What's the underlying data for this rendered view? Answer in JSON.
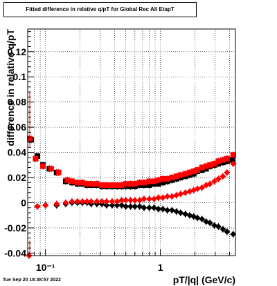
{
  "title": "Fitted difference in relative q/pT for Global Rec All EtapT",
  "timestamp": "Tue Sep 20 18:38:57 2022",
  "chart_data": {
    "type": "scatter",
    "xlabel": "pT/|q| (GeV/c)",
    "ylabel": "difference in relative q/pT",
    "x_scale": "log",
    "xlim": [
      0.07,
      4.5
    ],
    "ylim": [
      -0.042,
      0.138
    ],
    "grid": true,
    "x_ticks": [
      {
        "value": 0.1,
        "label": "10⁻¹"
      },
      {
        "value": 1,
        "label": "1"
      }
    ],
    "y_ticks": [
      {
        "value": -0.04,
        "label": "-0.04"
      },
      {
        "value": -0.02,
        "label": "-0.02"
      },
      {
        "value": 0,
        "label": "0"
      },
      {
        "value": 0.02,
        "label": "0.02"
      },
      {
        "value": 0.04,
        "label": "0.04"
      },
      {
        "value": 0.06,
        "label": "0.06"
      },
      {
        "value": 0.08,
        "label": "0.08"
      },
      {
        "value": 0.1,
        "label": "0.1"
      },
      {
        "value": 0.12,
        "label": "0.12"
      }
    ],
    "series": [
      {
        "marker": "square",
        "color": "#000000",
        "points": [
          [
            0.075,
            0.05
          ],
          [
            0.085,
            0.037
          ],
          [
            0.095,
            0.03
          ],
          [
            0.108,
            0.027
          ],
          [
            0.125,
            0.024
          ],
          [
            0.15,
            0.017
          ],
          [
            0.17,
            0.016
          ],
          [
            0.19,
            0.015
          ],
          [
            0.21,
            0.015
          ],
          [
            0.23,
            0.014
          ],
          [
            0.25,
            0.014
          ],
          [
            0.28,
            0.014
          ],
          [
            0.31,
            0.013
          ],
          [
            0.34,
            0.013
          ],
          [
            0.38,
            0.013
          ],
          [
            0.42,
            0.013
          ],
          [
            0.46,
            0.013
          ],
          [
            0.5,
            0.013
          ],
          [
            0.55,
            0.013
          ],
          [
            0.6,
            0.013
          ],
          [
            0.66,
            0.014
          ],
          [
            0.72,
            0.014
          ],
          [
            0.8,
            0.014
          ],
          [
            0.88,
            0.015
          ],
          [
            0.96,
            0.015
          ],
          [
            1.05,
            0.016
          ],
          [
            1.15,
            0.017
          ],
          [
            1.26,
            0.018
          ],
          [
            1.38,
            0.019
          ],
          [
            1.5,
            0.02
          ],
          [
            1.65,
            0.021
          ],
          [
            1.8,
            0.022
          ],
          [
            1.95,
            0.023
          ],
          [
            2.1,
            0.025
          ],
          [
            2.3,
            0.026
          ],
          [
            2.5,
            0.027
          ],
          [
            2.7,
            0.029
          ],
          [
            2.95,
            0.03
          ],
          [
            3.2,
            0.031
          ],
          [
            3.5,
            0.032
          ],
          [
            3.8,
            0.033
          ],
          [
            4.2,
            0.034
          ]
        ]
      },
      {
        "marker": "square",
        "color": "#ff0000",
        "points": [
          [
            0.073,
            0.051
          ],
          [
            0.082,
            0.035
          ],
          [
            0.095,
            0.029
          ],
          [
            0.112,
            0.027
          ],
          [
            0.13,
            0.024
          ],
          [
            0.155,
            0.018
          ],
          [
            0.17,
            0.017
          ],
          [
            0.19,
            0.016
          ],
          [
            0.21,
            0.016
          ],
          [
            0.23,
            0.015
          ],
          [
            0.25,
            0.015
          ],
          [
            0.28,
            0.015
          ],
          [
            0.31,
            0.014
          ],
          [
            0.34,
            0.014
          ],
          [
            0.38,
            0.014
          ],
          [
            0.42,
            0.014
          ],
          [
            0.46,
            0.014
          ],
          [
            0.5,
            0.015
          ],
          [
            0.55,
            0.015
          ],
          [
            0.6,
            0.015
          ],
          [
            0.66,
            0.016
          ],
          [
            0.72,
            0.016
          ],
          [
            0.8,
            0.017
          ],
          [
            0.88,
            0.017
          ],
          [
            0.96,
            0.018
          ],
          [
            1.05,
            0.019
          ],
          [
            1.15,
            0.019
          ],
          [
            1.26,
            0.02
          ],
          [
            1.38,
            0.021
          ],
          [
            1.5,
            0.022
          ],
          [
            1.65,
            0.023
          ],
          [
            1.8,
            0.024
          ],
          [
            1.95,
            0.025
          ],
          [
            2.1,
            0.026
          ],
          [
            2.3,
            0.028
          ],
          [
            2.5,
            0.029
          ],
          [
            2.7,
            0.03
          ],
          [
            2.95,
            0.031
          ],
          [
            3.2,
            0.033
          ],
          [
            3.5,
            0.034
          ],
          [
            3.8,
            0.035
          ],
          [
            4.3,
            0.038
          ]
        ]
      },
      {
        "marker": "diamond",
        "color": "#000000",
        "points": [
          [
            0.085,
            -0.003
          ],
          [
            0.1,
            -0.002
          ],
          [
            0.125,
            -0.002
          ],
          [
            0.15,
            -0.001
          ],
          [
            0.17,
            0.0
          ],
          [
            0.19,
            0.0
          ],
          [
            0.21,
            0.0
          ],
          [
            0.23,
            0.0
          ],
          [
            0.25,
            -0.001
          ],
          [
            0.28,
            -0.001
          ],
          [
            0.31,
            -0.001
          ],
          [
            0.34,
            -0.002
          ],
          [
            0.38,
            -0.002
          ],
          [
            0.42,
            -0.002
          ],
          [
            0.46,
            -0.002
          ],
          [
            0.5,
            -0.003
          ],
          [
            0.55,
            -0.003
          ],
          [
            0.6,
            -0.003
          ],
          [
            0.66,
            -0.003
          ],
          [
            0.72,
            -0.004
          ],
          [
            0.8,
            -0.004
          ],
          [
            0.88,
            -0.004
          ],
          [
            0.96,
            -0.005
          ],
          [
            1.05,
            -0.005
          ],
          [
            1.15,
            -0.006
          ],
          [
            1.26,
            -0.006
          ],
          [
            1.38,
            -0.007
          ],
          [
            1.5,
            -0.008
          ],
          [
            1.65,
            -0.009
          ],
          [
            1.8,
            -0.01
          ],
          [
            1.95,
            -0.011
          ],
          [
            2.1,
            -0.012
          ],
          [
            2.3,
            -0.013
          ],
          [
            2.5,
            -0.015
          ],
          [
            2.7,
            -0.016
          ],
          [
            2.95,
            -0.018
          ],
          [
            3.2,
            -0.019
          ],
          [
            3.5,
            -0.021
          ],
          [
            3.8,
            -0.023
          ],
          [
            4.3,
            -0.025
          ]
        ]
      },
      {
        "marker": "diamond",
        "color": "#ff0000",
        "points": [
          [
            0.072,
            -0.042
          ],
          [
            0.085,
            -0.003
          ],
          [
            0.1,
            -0.002
          ],
          [
            0.125,
            -0.001
          ],
          [
            0.15,
            0.0
          ],
          [
            0.17,
            0.001
          ],
          [
            0.19,
            0.001
          ],
          [
            0.21,
            0.001
          ],
          [
            0.23,
            0.001
          ],
          [
            0.25,
            0.001
          ],
          [
            0.28,
            0.001
          ],
          [
            0.31,
            0.001
          ],
          [
            0.34,
            0.001
          ],
          [
            0.38,
            0.001
          ],
          [
            0.42,
            0.001
          ],
          [
            0.46,
            0.002
          ],
          [
            0.5,
            0.002
          ],
          [
            0.55,
            0.002
          ],
          [
            0.6,
            0.002
          ],
          [
            0.66,
            0.002
          ],
          [
            0.72,
            0.003
          ],
          [
            0.8,
            0.003
          ],
          [
            0.88,
            0.003
          ],
          [
            0.96,
            0.004
          ],
          [
            1.05,
            0.004
          ],
          [
            1.15,
            0.005
          ],
          [
            1.26,
            0.005
          ],
          [
            1.38,
            0.006
          ],
          [
            1.5,
            0.007
          ],
          [
            1.65,
            0.008
          ],
          [
            1.8,
            0.009
          ],
          [
            1.95,
            0.01
          ],
          [
            2.1,
            0.011
          ],
          [
            2.3,
            0.012
          ],
          [
            2.5,
            0.014
          ],
          [
            2.7,
            0.015
          ],
          [
            2.95,
            0.017
          ],
          [
            3.2,
            0.019
          ],
          [
            3.5,
            0.021
          ],
          [
            3.8,
            0.024
          ],
          [
            4.3,
            0.031
          ]
        ]
      }
    ]
  }
}
